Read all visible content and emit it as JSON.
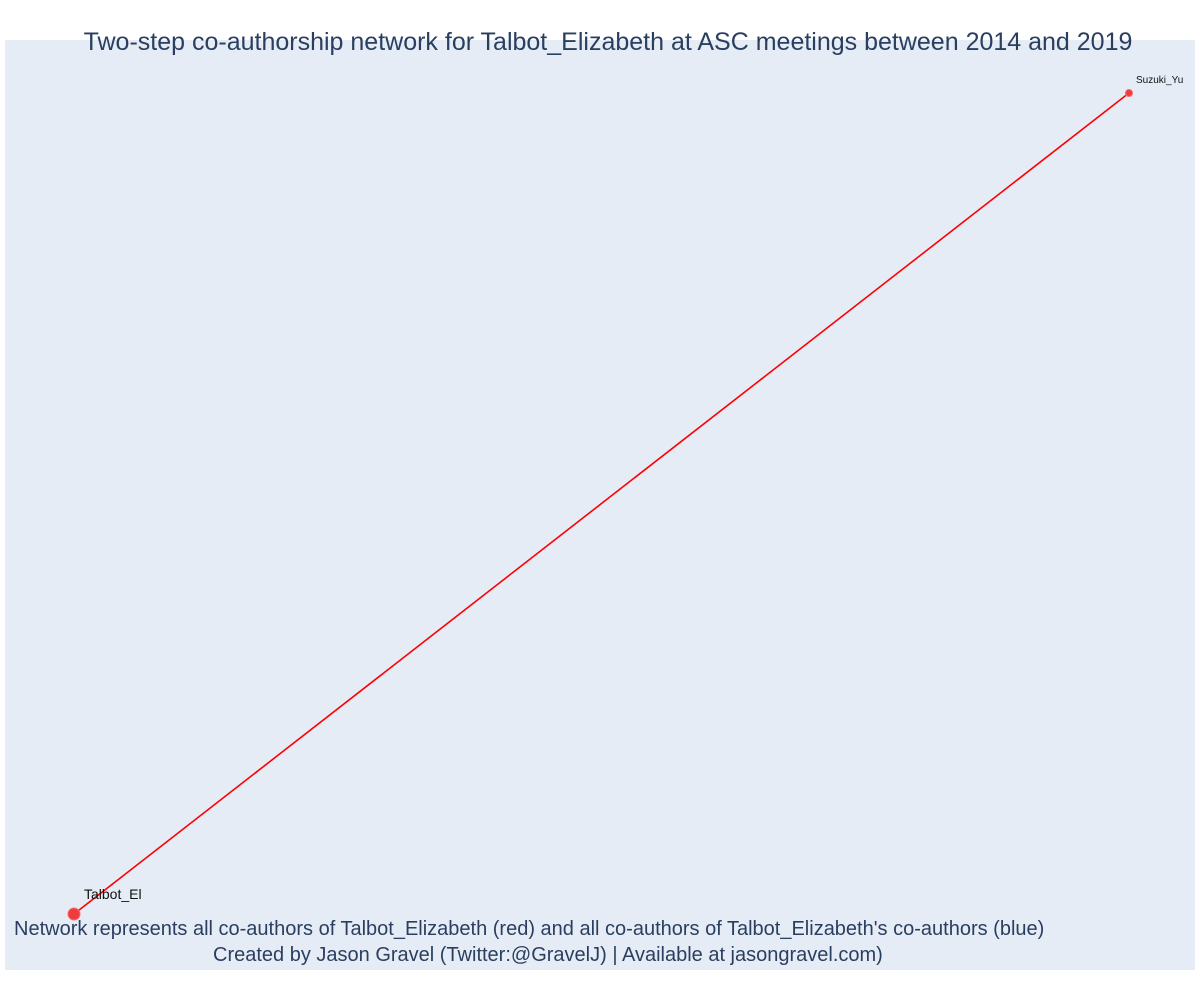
{
  "title": "Two-step co-authorship network for Talbot_Elizabeth at ASC meetings between 2014 and 2019",
  "captions": {
    "line1": "Network represents all co-authors of Talbot_Elizabeth (red) and all co-authors of Talbot_Elizabeth's co-authors (blue)",
    "line2": "Created by Jason Gravel (Twitter:@GravelJ) | Available at jasongravel.com)"
  },
  "colors": {
    "plot_bg": "#e5ecf6",
    "edge": "#ff0000",
    "node": "#ef3b3b",
    "text": "#2a3f5f"
  },
  "chart_data": {
    "type": "network",
    "nodes": [
      {
        "id": "Talbot_El",
        "label": "Talbot_El",
        "x": 0.0,
        "y": 0.0,
        "weight": 2,
        "color": "#ef3b3b"
      },
      {
        "id": "Suzuki_Yu",
        "label": "Suzuki_Yu",
        "x": 1.0,
        "y": 1.0,
        "weight": 1,
        "color": "#ef3b3b"
      }
    ],
    "edges": [
      {
        "source": "Talbot_El",
        "target": "Suzuki_Yu",
        "color": "#ff0000"
      }
    ],
    "grid": false,
    "legend": "none"
  }
}
